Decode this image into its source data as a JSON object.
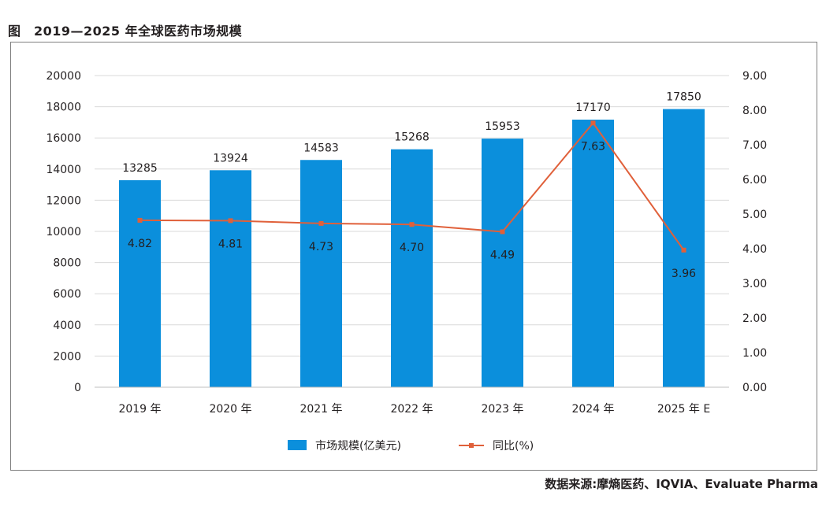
{
  "figure": {
    "title": "图　2019—2025 年全球医药市场规模",
    "source": "数据来源:摩熵医药、IQVIA、Evaluate Pharma"
  },
  "chart_data": {
    "type": "bar",
    "categories": [
      "2019 年",
      "2020 年",
      "2021 年",
      "2022 年",
      "2023 年",
      "2024 年",
      "2025 年 E"
    ],
    "series": [
      {
        "name": "市场规模(亿美元)",
        "type": "bar",
        "axis": "left",
        "color": "#0b8fdc",
        "values": [
          13285,
          13924,
          14583,
          15268,
          15953,
          17170,
          17850
        ],
        "labels": [
          "13285",
          "13924",
          "14583",
          "15268",
          "15953",
          "17170",
          "17850"
        ]
      },
      {
        "name": "同比(%)",
        "type": "line",
        "axis": "right",
        "color": "#e0603a",
        "values": [
          4.82,
          4.81,
          4.73,
          4.7,
          4.49,
          7.63,
          3.96
        ],
        "labels": [
          "4.82",
          "4.81",
          "4.73",
          "4.70",
          "4.49",
          "7.63",
          "3.96"
        ]
      }
    ],
    "y_left": {
      "ylim": [
        0,
        20000
      ],
      "ticks": [
        "0",
        "2000",
        "4000",
        "6000",
        "8000",
        "10000",
        "12000",
        "14000",
        "16000",
        "18000",
        "20000"
      ]
    },
    "y_right": {
      "ylim": [
        0,
        9
      ],
      "ticks": [
        "0.00",
        "1.00",
        "2.00",
        "3.00",
        "4.00",
        "5.00",
        "6.00",
        "7.00",
        "8.00",
        "9.00"
      ]
    },
    "grid": true,
    "legend": "bottom-center"
  }
}
